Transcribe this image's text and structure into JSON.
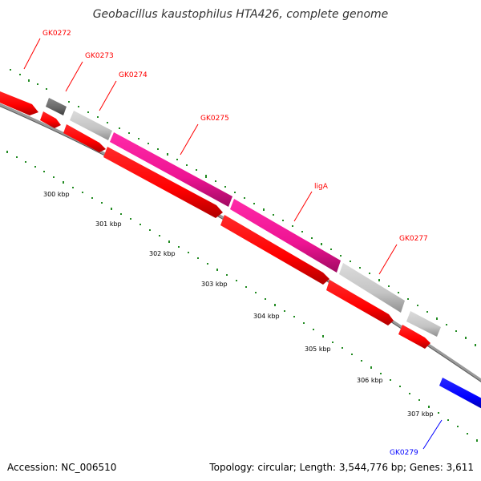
{
  "title": "Geobacillus kaustophilus HTA426, complete genome",
  "footer": {
    "accession": "Accession: NC_006510",
    "topology": "Topology: circular; Length: 3,544,776 bp; Genes: 3,611"
  },
  "colors": {
    "red": "#ff0000",
    "dark_red": "#b40000",
    "pink": "#ee1493",
    "light_gray": "#c8c8c8",
    "dark_gray": "#6e6e6e",
    "blue": "#0000ff",
    "dot_green": "#228b22",
    "backbone": "#808080"
  },
  "ticks": [
    "300 kbp",
    "301 kbp",
    "302 kbp",
    "303 kbp",
    "304 kbp",
    "305 kbp",
    "306 kbp",
    "307 kbp"
  ],
  "gene_labels": [
    {
      "name": "GK0272",
      "color": "red"
    },
    {
      "name": "GK0273",
      "color": "red"
    },
    {
      "name": "GK0274",
      "color": "red"
    },
    {
      "name": "GK0275",
      "color": "red"
    },
    {
      "name": "ligA",
      "color": "red"
    },
    {
      "name": "GK0277",
      "color": "red"
    },
    {
      "name": "GK0279",
      "color": "blue"
    }
  ]
}
